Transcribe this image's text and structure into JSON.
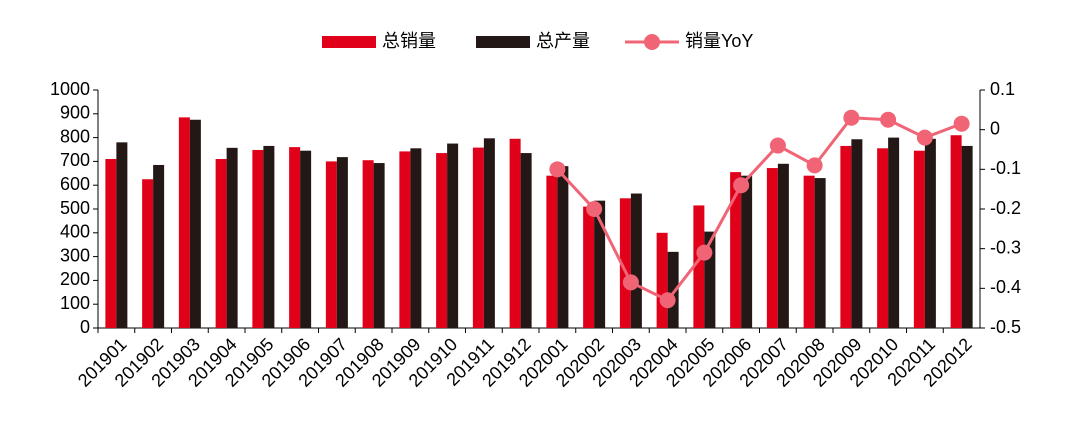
{
  "chart_data": {
    "type": "bar_line",
    "categories": [
      "201901",
      "201902",
      "201903",
      "201904",
      "201905",
      "201906",
      "201907",
      "201908",
      "201909",
      "201910",
      "201911",
      "201912",
      "202001",
      "202002",
      "202003",
      "202004",
      "202005",
      "202006",
      "202007",
      "202008",
      "202009",
      "202010",
      "202011",
      "202012"
    ],
    "series": [
      {
        "name": "总销量",
        "type": "bar",
        "color": "#e0001a",
        "values": [
          710,
          625,
          885,
          710,
          748,
          760,
          700,
          705,
          742,
          735,
          758,
          795,
          640,
          510,
          545,
          400,
          515,
          655,
          672,
          640,
          765,
          755,
          745,
          810
        ]
      },
      {
        "name": "总产量",
        "type": "bar",
        "color": "#231815",
        "values": [
          780,
          685,
          875,
          757,
          765,
          745,
          718,
          693,
          755,
          775,
          797,
          735,
          680,
          535,
          565,
          320,
          405,
          640,
          690,
          630,
          793,
          800,
          795,
          765
        ]
      },
      {
        "name": "销量YoY",
        "type": "line",
        "axis": "y2",
        "color": "#f06476",
        "values": [
          null,
          null,
          null,
          null,
          null,
          null,
          null,
          null,
          null,
          null,
          null,
          null,
          -0.1,
          -0.2,
          -0.385,
          -0.43,
          -0.31,
          -0.14,
          -0.04,
          -0.09,
          0.03,
          0.025,
          -0.02,
          0.015
        ]
      }
    ],
    "ylim": [
      0,
      1000
    ],
    "yticks": [
      0,
      100,
      200,
      300,
      400,
      500,
      600,
      700,
      800,
      900,
      1000
    ],
    "y2lim": [
      -0.5,
      0.1
    ],
    "y2ticks": [
      -0.5,
      -0.4,
      -0.3,
      -0.2,
      -0.1,
      0,
      0.1
    ],
    "legend": "top"
  }
}
